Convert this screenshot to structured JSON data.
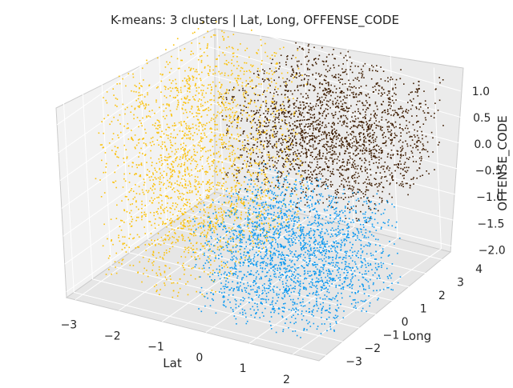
{
  "chart_data": {
    "type": "scatter",
    "projection": "3d",
    "title": "K-means: 3 clusters | Lat, Long, OFFENSE_CODE",
    "xlabel": "Lat",
    "ylabel": "Long",
    "zlabel": "OFFENSE_CODE",
    "x_ticks": [
      "−3",
      "−2",
      "−1",
      "0",
      "1",
      "2"
    ],
    "y_ticks": [
      "−3",
      "−2",
      "−1",
      "0",
      "1",
      "2",
      "3",
      "4"
    ],
    "z_ticks": [
      "1.0",
      "0.5",
      "0.0",
      "−0.5",
      "−1.0",
      "−1.5",
      "−2.0"
    ],
    "xlim": [
      -3.2,
      2.6
    ],
    "ylim": [
      -3.4,
      4.6
    ],
    "zlim": [
      -2.1,
      1.3
    ],
    "grid": true,
    "series": [
      {
        "color": "#fbc10a",
        "x_range": [
          -2.9,
          -0.6
        ],
        "y_range": [
          -2.4,
          3.8
        ],
        "z_range": [
          -2.0,
          1.2
        ]
      },
      {
        "color": "#0a98f0",
        "x_range": [
          -0.6,
          2.4
        ],
        "y_range": [
          -2.8,
          1.6
        ],
        "z_range": [
          -2.0,
          -0.3
        ]
      },
      {
        "color": "#3d1c00",
        "x_range": [
          -0.9,
          2.4
        ],
        "y_range": [
          -0.3,
          4.2
        ],
        "z_range": [
          -0.4,
          1.25
        ]
      }
    ]
  }
}
